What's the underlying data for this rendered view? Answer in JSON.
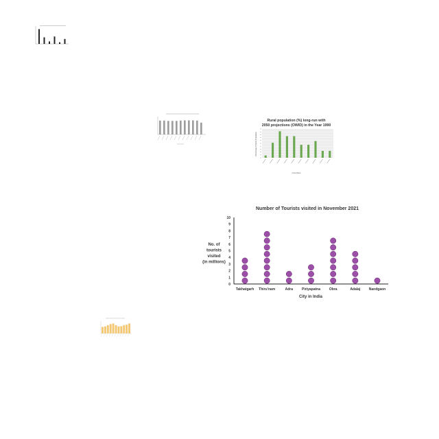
{
  "chart_data": [
    {
      "type": "bar",
      "title": "Number of Tourists visited in November 2021",
      "xlabel": "City in India",
      "ylabel_lines": [
        "No. of",
        "tourists",
        "visited",
        "(in millions)"
      ],
      "categories": [
        "Takhatgarh",
        "Thiru'nam",
        "Adra",
        "Piriyapatna",
        "Obra",
        "Adalaj",
        "Nandgaon"
      ],
      "values": [
        4,
        8,
        2,
        3,
        7,
        5,
        1
      ],
      "ylim": [
        0,
        10
      ],
      "yticks": [
        0,
        1,
        2,
        3,
        4,
        5,
        6,
        7,
        8,
        9,
        10
      ],
      "marker_color": "#9b4fa6",
      "marker_edge": "#6e2f78"
    },
    {
      "type": "bar",
      "title": "Rural population (%) long-run with 2050 projections (OWID) in the Year 1990",
      "xlabel": "Countries",
      "ylabel": "Percentage of Rural Population",
      "values": [
        8,
        52,
        92,
        75,
        75,
        45,
        45,
        58,
        24,
        24
      ],
      "ylim": [
        0,
        100
      ],
      "color": "#6aa84f"
    },
    {
      "type": "bar",
      "values": [
        90,
        40,
        15,
        45,
        10,
        30
      ],
      "color": "#222222"
    },
    {
      "type": "bar",
      "values": [
        78,
        78,
        76,
        76,
        76,
        78,
        79,
        79,
        79,
        78,
        66
      ],
      "color": "#9e9e9e"
    },
    {
      "type": "bar",
      "values": [
        55,
        60,
        70,
        80,
        85,
        70,
        60,
        62,
        70,
        75,
        85
      ],
      "color": "#f4c873"
    }
  ]
}
